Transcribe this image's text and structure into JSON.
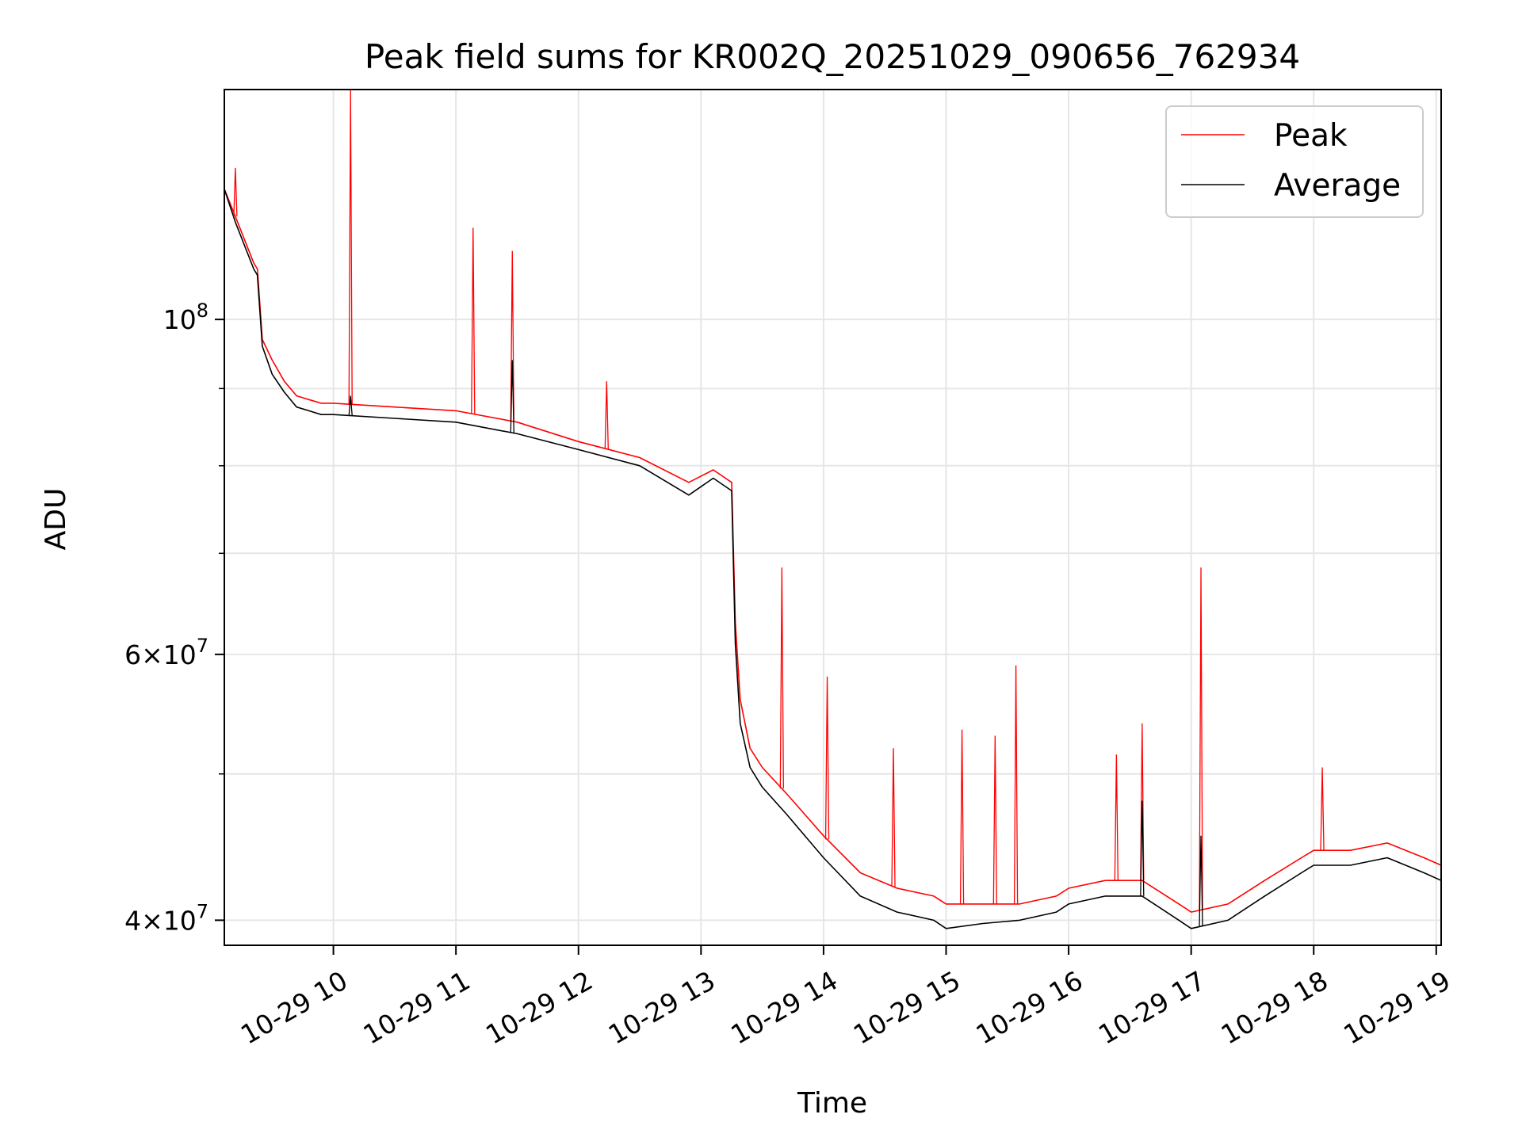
{
  "chart_data": {
    "type": "line",
    "title": "Peak field sums for KR002Q_20251029_090656_762934",
    "xlabel": "Time",
    "ylabel": "ADU",
    "yscale": "log",
    "grid": true,
    "legend_position": "top-right",
    "xlim": [
      9.11,
      19.04
    ],
    "ylim": [
      38500000,
      142000000
    ],
    "x_ticks": [
      {
        "value": 10,
        "label": "10-29 10"
      },
      {
        "value": 11,
        "label": "10-29 11"
      },
      {
        "value": 12,
        "label": "10-29 12"
      },
      {
        "value": 13,
        "label": "10-29 13"
      },
      {
        "value": 14,
        "label": "10-29 14"
      },
      {
        "value": 15,
        "label": "10-29 15"
      },
      {
        "value": 16,
        "label": "10-29 16"
      },
      {
        "value": 17,
        "label": "10-29 17"
      },
      {
        "value": 18,
        "label": "10-29 18"
      },
      {
        "value": 19,
        "label": "10-29 19"
      }
    ],
    "y_major_ticks": [
      {
        "value": 100000000,
        "label_base": "10",
        "label_exp": "8"
      },
      {
        "value": 60000000,
        "label_base": "6×10",
        "label_exp": "7"
      },
      {
        "value": 40000000,
        "label_base": "4×10",
        "label_exp": "7"
      }
    ],
    "y_minor_ticks": [
      50000000,
      70000000,
      80000000,
      90000000
    ],
    "series": [
      {
        "name": "Peak",
        "color": "#ff0000",
        "x": [
          9.11,
          9.2,
          9.35,
          9.38,
          9.42,
          9.5,
          9.6,
          9.7,
          9.8,
          9.9,
          10.0,
          10.5,
          11.0,
          11.5,
          12.0,
          12.5,
          12.9,
          13.1,
          13.25,
          13.28,
          13.32,
          13.4,
          13.5,
          13.7,
          14.0,
          14.3,
          14.6,
          14.9,
          15.0,
          15.3,
          15.6,
          15.9,
          16.0,
          16.3,
          16.6,
          16.9,
          17.0,
          17.3,
          17.6,
          17.9,
          18.0,
          18.3,
          18.6,
          18.9,
          19.04
        ],
        "values": [
          122000000,
          117000000,
          109000000,
          108000000,
          97000000,
          94000000,
          91000000,
          89000000,
          88500000,
          88000000,
          88000000,
          87500000,
          87000000,
          85500000,
          83000000,
          81000000,
          78000000,
          79500000,
          78000000,
          63000000,
          56000000,
          52000000,
          50500000,
          48500000,
          45500000,
          43000000,
          42000000,
          41500000,
          41000000,
          41000000,
          41000000,
          41500000,
          42000000,
          42500000,
          42500000,
          41000000,
          40500000,
          41000000,
          42500000,
          44000000,
          44500000,
          44500000,
          45000000,
          44000000,
          43500000
        ]
      },
      {
        "name": "Average",
        "color": "#000000",
        "x": [
          9.11,
          9.2,
          9.35,
          9.38,
          9.42,
          9.5,
          9.6,
          9.7,
          9.8,
          9.9,
          10.0,
          10.5,
          11.0,
          11.5,
          12.0,
          12.5,
          12.9,
          13.1,
          13.25,
          13.28,
          13.32,
          13.4,
          13.5,
          13.7,
          14.0,
          14.3,
          14.6,
          14.9,
          15.0,
          15.3,
          15.6,
          15.9,
          16.0,
          16.3,
          16.6,
          16.9,
          17.0,
          17.3,
          17.6,
          17.9,
          18.0,
          18.3,
          18.6,
          18.9,
          19.04
        ],
        "values": [
          122000000,
          116000000,
          108000000,
          107000000,
          96000000,
          92000000,
          89500000,
          87500000,
          87000000,
          86500000,
          86500000,
          86000000,
          85500000,
          84000000,
          82000000,
          80000000,
          76500000,
          78500000,
          77000000,
          61000000,
          54000000,
          50500000,
          49000000,
          47000000,
          44000000,
          41500000,
          40500000,
          40000000,
          39500000,
          39800000,
          40000000,
          40500000,
          41000000,
          41500000,
          41500000,
          40000000,
          39500000,
          40000000,
          41500000,
          43000000,
          43500000,
          43500000,
          44000000,
          43000000,
          42500000
        ]
      }
    ],
    "spikes": [
      {
        "series": "Peak",
        "x": 9.2,
        "value": 126000000
      },
      {
        "series": "Peak",
        "x": 10.14,
        "value": 142000000
      },
      {
        "series": "Peak",
        "x": 11.14,
        "value": 115000000
      },
      {
        "series": "Peak",
        "x": 11.46,
        "value": 111000000
      },
      {
        "series": "Peak",
        "x": 12.23,
        "value": 91000000
      },
      {
        "series": "Peak",
        "x": 13.66,
        "value": 68500000
      },
      {
        "series": "Peak",
        "x": 14.03,
        "value": 58000000
      },
      {
        "series": "Peak",
        "x": 14.57,
        "value": 52000000
      },
      {
        "series": "Peak",
        "x": 15.13,
        "value": 53500000
      },
      {
        "series": "Peak",
        "x": 15.4,
        "value": 53000000
      },
      {
        "series": "Peak",
        "x": 15.57,
        "value": 59000000
      },
      {
        "series": "Peak",
        "x": 16.39,
        "value": 51500000
      },
      {
        "series": "Peak",
        "x": 16.6,
        "value": 54000000
      },
      {
        "series": "Peak",
        "x": 17.08,
        "value": 68500000
      },
      {
        "series": "Peak",
        "x": 18.07,
        "value": 50500000
      },
      {
        "series": "Average",
        "x": 10.14,
        "value": 89000000
      },
      {
        "series": "Average",
        "x": 11.46,
        "value": 94000000
      },
      {
        "series": "Average",
        "x": 16.6,
        "value": 48000000
      },
      {
        "series": "Average",
        "x": 17.08,
        "value": 45500000
      }
    ]
  }
}
